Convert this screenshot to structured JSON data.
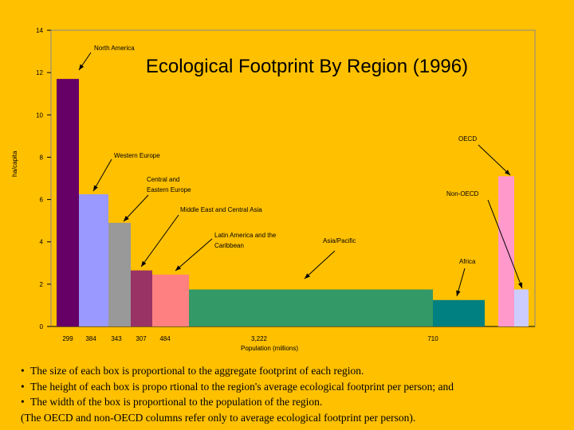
{
  "chart_data": {
    "type": "bar",
    "title": "Ecological Footprint By Region (1996)",
    "xlabel": "Population (millions)",
    "ylabel": "ha/capita",
    "ylim": [
      0,
      14
    ],
    "yticks": [
      0,
      2,
      4,
      6,
      8,
      10,
      12,
      14
    ],
    "grid": false,
    "series": [
      {
        "label": "North America",
        "population": 299,
        "pop_label": "299",
        "value": 11.7,
        "color": "#660066"
      },
      {
        "label": "Western Europe",
        "population": 384,
        "pop_label": "384",
        "value": 6.25,
        "color": "#9999FF"
      },
      {
        "label": "Central and Eastern Europe",
        "population": 343,
        "pop_label": "343",
        "value": 4.9,
        "color": "#999999"
      },
      {
        "label": "Middle East and Central Asia",
        "population": 307,
        "pop_label": "307",
        "value": 2.65,
        "color": "#993366"
      },
      {
        "label": "Latin America and the Caribbean",
        "population": 484,
        "pop_label": "484",
        "value": 2.45,
        "color": "#FF8080"
      },
      {
        "label": "Asia/Pacific",
        "population": 3222,
        "pop_label": "3,222",
        "value": 1.75,
        "color": "#339966"
      },
      {
        "label": "Africa",
        "population": 710,
        "pop_label": "710",
        "value": 1.25,
        "color": "#008080"
      },
      {
        "label": "OECD",
        "population": null,
        "pop_label": "",
        "value": 7.1,
        "color": "#FF99CC"
      },
      {
        "label": "Non-OECD",
        "population": null,
        "pop_label": "",
        "value": 1.75,
        "color": "#CCCCFF"
      }
    ]
  },
  "notes": [
    "The size of each box is proportional to the aggregate footprint of each region.",
    "The height of each box is propo rtional to the region's average ecological footprint per person; and",
    "The width of the box is proportional to the population of the region.",
    "(The OECD and non-OECD columns refer only to average ecological footprint per person)."
  ],
  "bullet_symbol": "•"
}
